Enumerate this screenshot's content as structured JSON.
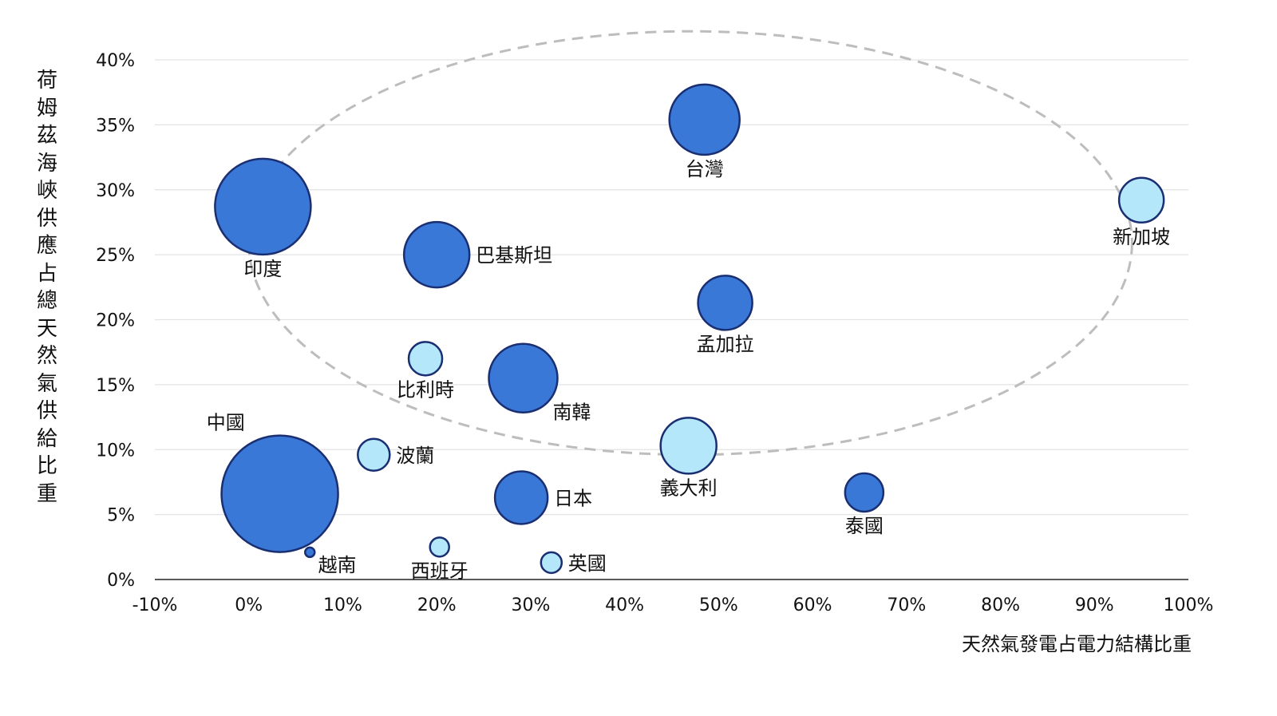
{
  "chart_data": {
    "type": "bubble",
    "xlabel": "天然氣發電占電力結構比重",
    "ylabel": "荷姆茲海峽供應占總天然氣供給比重",
    "xlim": [
      -10,
      100
    ],
    "ylim": [
      0,
      40
    ],
    "x_ticks": [
      -10,
      0,
      10,
      20,
      30,
      40,
      50,
      60,
      70,
      80,
      90,
      100
    ],
    "y_ticks": [
      0,
      5,
      10,
      15,
      20,
      25,
      30,
      35,
      40
    ],
    "tick_suffix": "%",
    "grid": "horizontal",
    "colors": {
      "dark": "#3a78d8",
      "light": "#b4e7fa",
      "edge": "#1a2f72",
      "grid": "#e3e3e3",
      "ellipse": "#bdbdbd"
    },
    "highlight_ellipse": {
      "center": [
        47,
        25.9
      ],
      "radius_x": 47,
      "radius_y": 16.3
    },
    "points": [
      {
        "name": "台灣",
        "x": 48.5,
        "y": 35.4,
        "size": 44,
        "color": "dark",
        "label_pos": "below"
      },
      {
        "name": "新加坡",
        "x": 95.0,
        "y": 29.2,
        "size": 28,
        "color": "light",
        "label_pos": "below"
      },
      {
        "name": "印度",
        "x": 1.5,
        "y": 28.7,
        "size": 60,
        "color": "dark",
        "label_pos": "below"
      },
      {
        "name": "巴基斯坦",
        "x": 20.0,
        "y": 25.0,
        "size": 41,
        "color": "dark",
        "label_pos": "right"
      },
      {
        "name": "孟加拉",
        "x": 50.7,
        "y": 21.3,
        "size": 34,
        "color": "dark",
        "label_pos": "below"
      },
      {
        "name": "比利時",
        "x": 18.8,
        "y": 17.0,
        "size": 21,
        "color": "light",
        "label_pos": "below"
      },
      {
        "name": "南韓",
        "x": 29.2,
        "y": 15.5,
        "size": 43,
        "color": "dark",
        "label_pos": "below-right"
      },
      {
        "name": "中國",
        "x": 3.3,
        "y": 6.6,
        "size": 73,
        "color": "dark",
        "label_pos": "above-left"
      },
      {
        "name": "波蘭",
        "x": 13.3,
        "y": 9.6,
        "size": 20,
        "color": "light",
        "label_pos": "right"
      },
      {
        "name": "義大利",
        "x": 46.8,
        "y": 10.3,
        "size": 35,
        "color": "light",
        "label_pos": "below"
      },
      {
        "name": "日本",
        "x": 29.0,
        "y": 6.3,
        "size": 33,
        "color": "dark",
        "label_pos": "right"
      },
      {
        "name": "泰國",
        "x": 65.5,
        "y": 6.7,
        "size": 24,
        "color": "dark",
        "label_pos": "below"
      },
      {
        "name": "越南",
        "x": 6.5,
        "y": 2.1,
        "size": 6,
        "color": "dark",
        "label_pos": "below-right"
      },
      {
        "name": "西班牙",
        "x": 20.3,
        "y": 2.5,
        "size": 12,
        "color": "light",
        "label_pos": "below"
      },
      {
        "name": "英國",
        "x": 32.2,
        "y": 1.3,
        "size": 13,
        "color": "light",
        "label_pos": "right"
      }
    ]
  }
}
